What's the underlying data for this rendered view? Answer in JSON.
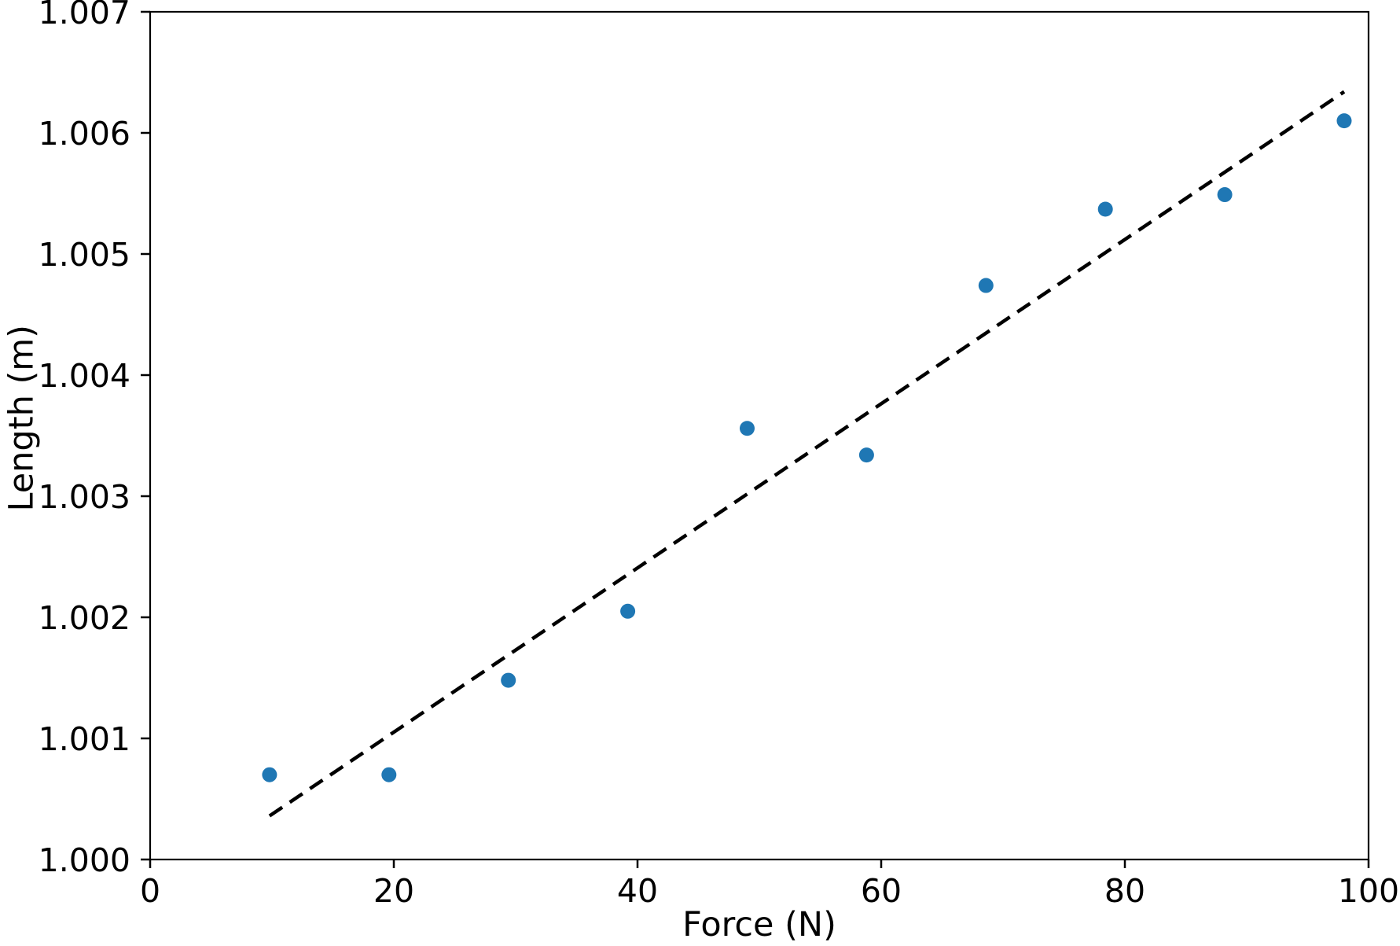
{
  "chart_data": {
    "type": "scatter",
    "title": "",
    "xlabel": "Force (N)",
    "ylabel": "Length (m)",
    "xlim": [
      0,
      100
    ],
    "ylim": [
      1.0,
      1.007
    ],
    "grid": false,
    "legend": null,
    "x_ticks": [
      0,
      20,
      40,
      60,
      80,
      100
    ],
    "x_tick_labels": [
      "0",
      "20",
      "40",
      "60",
      "80",
      "100"
    ],
    "y_ticks": [
      1.0,
      1.001,
      1.002,
      1.003,
      1.004,
      1.005,
      1.006,
      1.007
    ],
    "y_tick_labels": [
      "1.000",
      "1.001",
      "1.002",
      "1.003",
      "1.004",
      "1.005",
      "1.006",
      "1.007"
    ],
    "series": [
      {
        "name": "measured-points",
        "type": "scatter",
        "marker": "circle",
        "color": "#1f77b4",
        "x": [
          9.8,
          19.6,
          29.4,
          39.2,
          49.0,
          58.8,
          68.6,
          78.4,
          88.2,
          98.0
        ],
        "y": [
          1.0007,
          1.0007,
          1.00148,
          1.00205,
          1.00356,
          1.00334,
          1.00474,
          1.00537,
          1.00549,
          1.0061
        ]
      },
      {
        "name": "linear-fit-line",
        "type": "line",
        "style": "dashed",
        "color": "#000000",
        "x": [
          9.8,
          98.0
        ],
        "y": [
          1.00036,
          1.00634
        ]
      }
    ]
  }
}
